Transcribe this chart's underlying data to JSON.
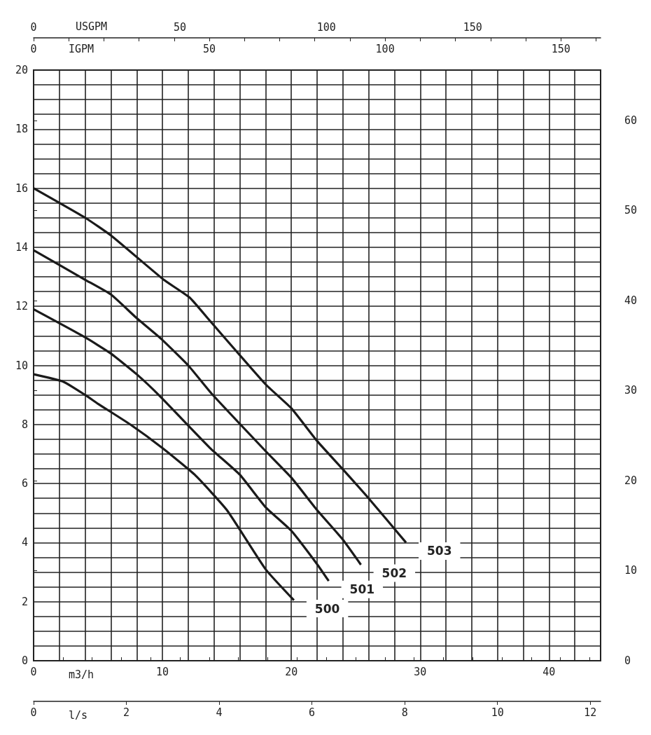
{
  "chart_data": {
    "type": "line",
    "xlabel": "m3/h",
    "x2label": "USGPM",
    "annotations": [
      "IGPM",
      "0",
      "50",
      "100",
      "150",
      "l/s",
      "0",
      "2",
      "4",
      "6",
      "8",
      "10",
      "12"
    ],
    "xlim": [
      0,
      44
    ],
    "xticks": [
      0,
      {
        "value": 2,
        "label": null
      },
      {
        "value": 4,
        "label": null
      },
      {
        "value": 6,
        "label": null
      },
      {
        "value": 8,
        "label": null
      },
      10,
      {
        "value": 12,
        "label": null
      },
      {
        "value": 14,
        "label": null
      },
      {
        "value": 16,
        "label": null
      },
      {
        "value": 18,
        "label": null
      },
      20,
      {
        "value": 22,
        "label": null
      },
      {
        "value": 24,
        "label": null
      },
      {
        "value": 26,
        "label": null
      },
      {
        "value": 28,
        "label": null
      },
      30,
      {
        "value": 32,
        "label": null
      },
      {
        "value": 34,
        "label": null
      },
      {
        "value": 36,
        "label": null
      },
      {
        "value": 38,
        "label": null
      },
      40,
      {
        "value": 42,
        "label": null
      },
      {
        "value": 44,
        "label": null
      }
    ],
    "x2lim": [
      0,
      193.7
    ],
    "x2ticks": [
      0,
      {
        "value": 10,
        "label": null
      },
      {
        "value": 20,
        "label": null
      },
      {
        "value": 30,
        "label": null
      },
      {
        "value": 40,
        "label": null
      },
      50,
      {
        "value": 60,
        "label": null
      },
      {
        "value": 70,
        "label": null
      },
      {
        "value": 80,
        "label": null
      },
      {
        "value": 90,
        "label": null
      },
      100,
      {
        "value": 110,
        "label": null
      },
      {
        "value": 120,
        "label": null
      },
      {
        "value": 130,
        "label": null
      },
      {
        "value": 140,
        "label": null
      },
      150,
      {
        "value": 160,
        "label": null
      },
      {
        "value": 170,
        "label": null
      },
      {
        "value": 180,
        "label": null
      },
      {
        "value": 190,
        "label": null
      }
    ],
    "ylim": [
      0,
      20
    ],
    "yticks": [
      0,
      {
        "value": 0.5,
        "label": null
      },
      {
        "value": 1,
        "label": null
      },
      {
        "value": 1.5,
        "label": null
      },
      2,
      {
        "value": 2.5,
        "label": null
      },
      {
        "value": 3,
        "label": null
      },
      {
        "value": 3.5,
        "label": null
      },
      4,
      {
        "value": 4.5,
        "label": null
      },
      {
        "value": 5,
        "label": null
      },
      {
        "value": 5.5,
        "label": null
      },
      6,
      {
        "value": 6.5,
        "label": null
      },
      {
        "value": 7,
        "label": null
      },
      {
        "value": 7.5,
        "label": null
      },
      8,
      {
        "value": 8.5,
        "label": null
      },
      {
        "value": 9,
        "label": null
      },
      {
        "value": 9.5,
        "label": null
      },
      10,
      {
        "value": 10.5,
        "label": null
      },
      {
        "value": 11,
        "label": null
      },
      {
        "value": 11.5,
        "label": null
      },
      12,
      {
        "value": 12.5,
        "label": null
      },
      {
        "value": 13,
        "label": null
      },
      {
        "value": 13.5,
        "label": null
      },
      14,
      {
        "value": 14.5,
        "label": null
      },
      {
        "value": 15,
        "label": null
      },
      {
        "value": 15.5,
        "label": null
      },
      16,
      {
        "value": 16.5,
        "label": null
      },
      {
        "value": 17,
        "label": null
      },
      {
        "value": 17.5,
        "label": null
      },
      18,
      {
        "value": 18.5,
        "label": null
      },
      {
        "value": 19,
        "label": null
      },
      {
        "value": 19.5,
        "label": null
      },
      20
    ],
    "y2lim": [
      0,
      65.6
    ],
    "y2ticks": [
      0,
      10,
      20,
      30,
      40,
      50,
      60
    ],
    "grid": true,
    "legend": false,
    "marker": "none",
    "line_style": "solid",
    "series": [
      {
        "name": "500",
        "color": "#1a1a1a",
        "x": [
          0,
          2.3,
          4,
          5,
          7.5,
          10,
          12.5,
          15,
          18,
          20.2
        ],
        "values": [
          9.7,
          9.45,
          9.0,
          8.7,
          8.0,
          7.2,
          6.3,
          5.1,
          3.1,
          2.05
        ]
      },
      {
        "name": "501",
        "color": "#1a1a1a",
        "x": [
          0,
          4,
          6,
          8,
          9.8,
          13.7,
          16,
          18,
          20,
          22,
          22.9
        ],
        "values": [
          11.9,
          10.95,
          10.4,
          9.7,
          8.96,
          7.2,
          6.3,
          5.2,
          4.4,
          3.27,
          2.7
        ]
      },
      {
        "name": "502",
        "color": "#1a1a1a",
        "x": [
          0,
          4,
          6,
          8,
          9.9,
          12,
          13.8,
          18,
          20,
          22,
          24,
          25.4
        ],
        "values": [
          13.9,
          12.9,
          12.4,
          11.6,
          10.9,
          10.0,
          9.05,
          7.1,
          6.2,
          5.1,
          4.1,
          3.25
        ]
      },
      {
        "name": "503",
        "color": "#1a1a1a",
        "x": [
          0,
          4,
          6,
          10.1,
          12.1,
          13.7,
          18,
          20,
          22,
          24,
          26,
          28.9
        ],
        "values": [
          16.0,
          15.0,
          14.4,
          12.9,
          12.3,
          11.5,
          9.36,
          8.55,
          7.44,
          6.48,
          5.5,
          4.0
        ]
      }
    ]
  }
}
